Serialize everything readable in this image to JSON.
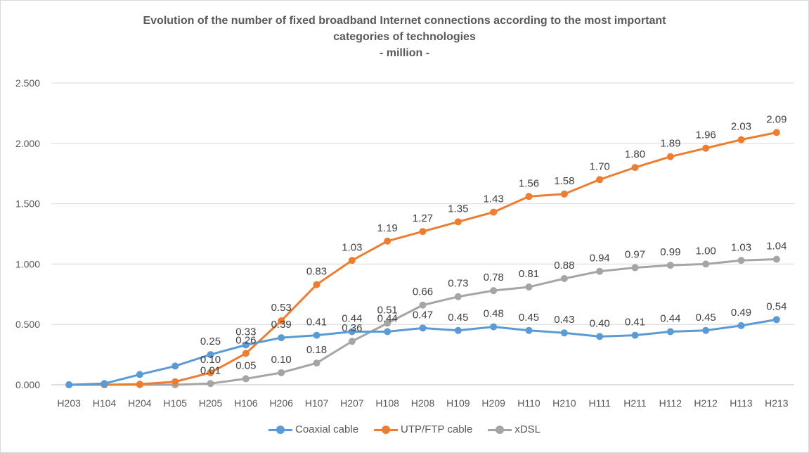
{
  "title_lines": [
    "Evolution of the number of fixed broadband  Internet connections according to the most important",
    "categories of technologies",
    "- million -"
  ],
  "chart_data": {
    "type": "line",
    "title": "Evolution of the number of fixed broadband  Internet connections according to the most important categories of technologies - million -",
    "xlabel": "",
    "ylabel": "",
    "ylim": [
      0,
      2.5
    ],
    "yticks": [
      "0.000",
      "0.500",
      "1.000",
      "1.500",
      "2.000",
      "2.500"
    ],
    "grid": true,
    "legend_position": "bottom",
    "categories": [
      "H203",
      "H104",
      "H204",
      "H105",
      "H205",
      "H106",
      "H206",
      "H107",
      "H207",
      "H108",
      "H208",
      "H109",
      "H209",
      "H110",
      "H210",
      "H111",
      "H211",
      "H112",
      "H212",
      "H113",
      "H213"
    ],
    "series": [
      {
        "name": "Coaxial cable",
        "color": "#5b9bd5",
        "values": [
          0.0,
          0.01,
          0.085,
          0.155,
          0.25,
          0.33,
          0.39,
          0.41,
          0.44,
          0.44,
          0.47,
          0.45,
          0.48,
          0.45,
          0.43,
          0.4,
          0.41,
          0.44,
          0.45,
          0.49,
          0.54
        ],
        "labels": [
          "",
          "",
          "",
          "",
          "0.25",
          "0.33",
          "0.39",
          "0.41",
          "0.44",
          "0.44",
          "0.47",
          "0.45",
          "0.48",
          "0.45",
          "0.43",
          "0.40",
          "0.41",
          "0.44",
          "0.45",
          "0.49",
          "0.54"
        ]
      },
      {
        "name": "UTP/FTP cable",
        "color": "#ed7d31",
        "values": [
          0.0,
          0.0,
          0.005,
          0.025,
          0.1,
          0.26,
          0.53,
          0.83,
          1.03,
          1.19,
          1.27,
          1.35,
          1.43,
          1.56,
          1.58,
          1.7,
          1.8,
          1.89,
          1.96,
          2.03,
          2.09
        ],
        "labels": [
          "",
          "",
          "",
          "",
          "0.10",
          "0.26",
          "0.53",
          "0.83",
          "1.03",
          "1.19",
          "1.27",
          "1.35",
          "1.43",
          "1.56",
          "1.58",
          "1.70",
          "1.80",
          "1.89",
          "1.96",
          "2.03",
          "2.09"
        ]
      },
      {
        "name": "xDSL",
        "color": "#a5a5a5",
        "values": [
          0.0,
          0.0,
          0.0,
          0.0,
          0.01,
          0.05,
          0.1,
          0.18,
          0.36,
          0.51,
          0.66,
          0.73,
          0.78,
          0.81,
          0.88,
          0.94,
          0.97,
          0.99,
          1.0,
          1.03,
          1.04
        ],
        "labels": [
          "",
          "",
          "",
          "",
          "0.01",
          "0.05",
          "0.10",
          "0.18",
          "0.36",
          "0.51",
          "0.66",
          "0.73",
          "0.78",
          "0.81",
          "0.88",
          "0.94",
          "0.97",
          "0.99",
          "1.00",
          "1.03",
          "1.04"
        ]
      }
    ]
  }
}
